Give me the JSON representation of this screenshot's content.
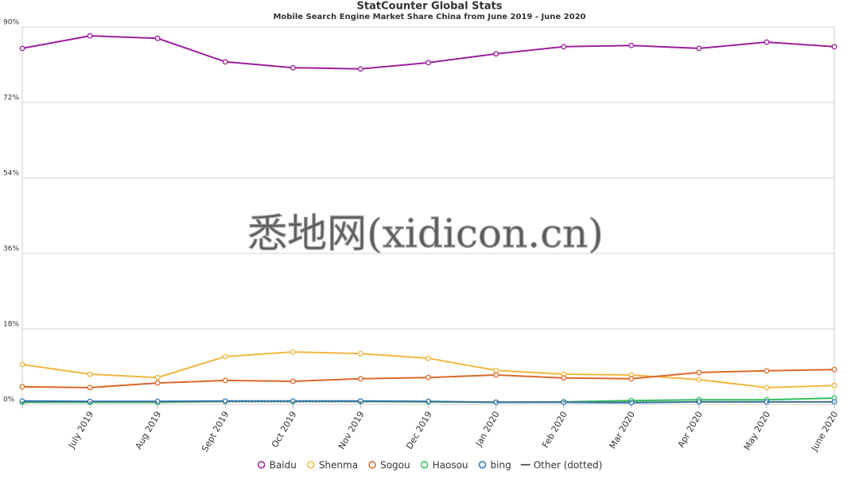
{
  "chart_data": {
    "type": "line",
    "title": "StatCounter Global Stats",
    "subtitle": "Mobile Search Engine Market Share China from June 2019 - June 2020",
    "watermark": "悉地网(xidicon.cn)",
    "categories": [
      null,
      "July 2019",
      "Aug 2019",
      "Sept 2019",
      "Oct 2019",
      "Nov 2019",
      "Dec 2019",
      "Jan 2020",
      "Feb 2020",
      "Mar 2020",
      "Apr 2020",
      "May 2020",
      "June 2020"
    ],
    "series": [
      {
        "name": "Baidu",
        "color": "#9b1f9c",
        "values": [
          84.9,
          87.9,
          87.3,
          81.7,
          80.3,
          80.0,
          81.5,
          83.6,
          85.3,
          85.6,
          84.9,
          86.4,
          85.3
        ]
      },
      {
        "name": "Shenma",
        "color": "#f2b640",
        "values": [
          9.5,
          7.2,
          6.4,
          11.4,
          12.5,
          12.1,
          11.0,
          8.1,
          7.2,
          7.0,
          5.9,
          4.0,
          4.5
        ]
      },
      {
        "name": "Sogou",
        "color": "#d9692a",
        "values": [
          4.2,
          4.0,
          5.1,
          5.7,
          5.5,
          6.1,
          6.4,
          7.0,
          6.3,
          6.1,
          7.6,
          8.0,
          8.3
        ]
      },
      {
        "name": "Haosou",
        "color": "#2fc25b",
        "values": [
          0.5,
          0.5,
          0.5,
          0.7,
          0.7,
          0.7,
          0.6,
          0.5,
          0.6,
          0.9,
          1.1,
          1.1,
          1.5
        ]
      },
      {
        "name": "bing",
        "color": "#2a7ab8",
        "values": [
          0.8,
          0.7,
          0.7,
          0.8,
          0.8,
          0.8,
          0.7,
          0.5,
          0.5,
          0.4,
          0.6,
          0.6,
          0.6
        ]
      },
      {
        "name": "Other (dotted)",
        "color": "#666666",
        "dotted": true,
        "values": [
          0.6,
          0.6,
          0.6,
          0.6,
          0.6,
          0.6,
          0.6,
          0.6,
          0.6,
          0.6,
          0.6,
          0.6,
          0.6
        ]
      }
    ],
    "ylim": [
      0,
      90
    ],
    "yticks": [
      {
        "value": 0,
        "label": "0%"
      },
      {
        "value": 18,
        "label": "18%"
      },
      {
        "value": 36,
        "label": "36%"
      },
      {
        "value": 54,
        "label": "54%"
      },
      {
        "value": 72,
        "label": "72%"
      },
      {
        "value": 90,
        "label": "90%"
      }
    ],
    "grid": true,
    "legend": "bottom"
  }
}
